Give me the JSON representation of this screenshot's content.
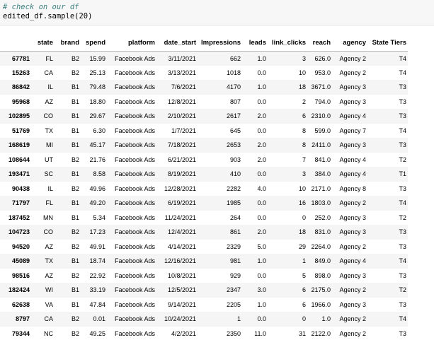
{
  "code": {
    "comment": "# check on our df",
    "line": "edited_df.sample(20)"
  },
  "table": {
    "columns": [
      "",
      "state",
      "brand",
      "spend",
      "platform",
      "date_start",
      "Impressions",
      "leads",
      "link_clicks",
      "reach",
      "agency",
      "State Tiers"
    ],
    "rows": [
      [
        "67781",
        "FL",
        "B2",
        "15.99",
        "Facebook Ads",
        "3/11/2021",
        "662",
        "1.0",
        "3",
        "626.0",
        "Agency 2",
        "T4"
      ],
      [
        "15263",
        "CA",
        "B2",
        "25.13",
        "Facebook Ads",
        "3/13/2021",
        "1018",
        "0.0",
        "10",
        "953.0",
        "Agency 2",
        "T4"
      ],
      [
        "86842",
        "IL",
        "B1",
        "79.48",
        "Facebook Ads",
        "7/6/2021",
        "4170",
        "1.0",
        "18",
        "3671.0",
        "Agency 3",
        "T3"
      ],
      [
        "95968",
        "AZ",
        "B1",
        "18.80",
        "Facebook Ads",
        "12/8/2021",
        "807",
        "0.0",
        "2",
        "794.0",
        "Agency 3",
        "T3"
      ],
      [
        "102895",
        "CO",
        "B1",
        "29.67",
        "Facebook Ads",
        "2/10/2021",
        "2617",
        "2.0",
        "6",
        "2310.0",
        "Agency 4",
        "T3"
      ],
      [
        "51769",
        "TX",
        "B1",
        "6.30",
        "Facebook Ads",
        "1/7/2021",
        "645",
        "0.0",
        "8",
        "599.0",
        "Agency 7",
        "T4"
      ],
      [
        "168619",
        "MI",
        "B1",
        "45.17",
        "Facebook Ads",
        "7/18/2021",
        "2653",
        "2.0",
        "8",
        "2411.0",
        "Agency 3",
        "T3"
      ],
      [
        "108644",
        "UT",
        "B2",
        "21.76",
        "Facebook Ads",
        "6/21/2021",
        "903",
        "2.0",
        "7",
        "841.0",
        "Agency 4",
        "T2"
      ],
      [
        "193471",
        "SC",
        "B1",
        "8.58",
        "Facebook Ads",
        "8/19/2021",
        "410",
        "0.0",
        "3",
        "384.0",
        "Agency 4",
        "T1"
      ],
      [
        "90438",
        "IL",
        "B2",
        "49.96",
        "Facebook Ads",
        "12/28/2021",
        "2282",
        "4.0",
        "10",
        "2171.0",
        "Agency 8",
        "T3"
      ],
      [
        "71797",
        "FL",
        "B1",
        "49.20",
        "Facebook Ads",
        "6/19/2021",
        "1985",
        "0.0",
        "16",
        "1803.0",
        "Agency 2",
        "T4"
      ],
      [
        "187452",
        "MN",
        "B1",
        "5.34",
        "Facebook Ads",
        "11/24/2021",
        "264",
        "0.0",
        "0",
        "252.0",
        "Agency 3",
        "T2"
      ],
      [
        "104723",
        "CO",
        "B2",
        "17.23",
        "Facebook Ads",
        "12/4/2021",
        "861",
        "2.0",
        "18",
        "831.0",
        "Agency 3",
        "T3"
      ],
      [
        "94520",
        "AZ",
        "B2",
        "49.91",
        "Facebook Ads",
        "4/14/2021",
        "2329",
        "5.0",
        "29",
        "2264.0",
        "Agency 2",
        "T3"
      ],
      [
        "45089",
        "TX",
        "B1",
        "18.74",
        "Facebook Ads",
        "12/16/2021",
        "981",
        "1.0",
        "1",
        "849.0",
        "Agency 4",
        "T4"
      ],
      [
        "98516",
        "AZ",
        "B2",
        "22.92",
        "Facebook Ads",
        "10/8/2021",
        "929",
        "0.0",
        "5",
        "898.0",
        "Agency 3",
        "T3"
      ],
      [
        "182424",
        "WI",
        "B1",
        "33.19",
        "Facebook Ads",
        "12/5/2021",
        "2347",
        "3.0",
        "6",
        "2175.0",
        "Agency 2",
        "T2"
      ],
      [
        "62638",
        "VA",
        "B1",
        "47.84",
        "Facebook Ads",
        "9/14/2021",
        "2205",
        "1.0",
        "6",
        "1966.0",
        "Agency 3",
        "T3"
      ],
      [
        "8797",
        "CA",
        "B2",
        "0.01",
        "Facebook Ads",
        "10/24/2021",
        "1",
        "0.0",
        "0",
        "1.0",
        "Agency 2",
        "T4"
      ],
      [
        "79344",
        "NC",
        "B2",
        "49.25",
        "Facebook Ads",
        "4/2/2021",
        "2350",
        "11.0",
        "31",
        "2122.0",
        "Agency 2",
        "T3"
      ]
    ]
  }
}
